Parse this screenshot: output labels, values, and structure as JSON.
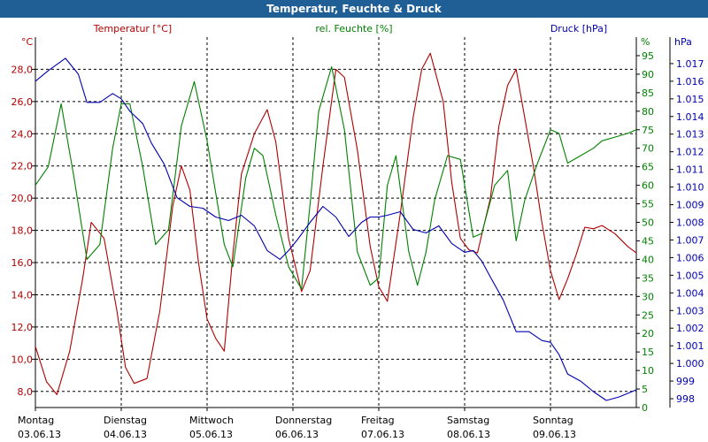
{
  "title": "Temperatur, Feuchte & Druck",
  "colors": {
    "temperature": "#b00000",
    "humidity": "#008000",
    "pressure": "#0000b0",
    "titlebar": "#1f5f95",
    "grid": "#000000"
  },
  "chart_data": {
    "type": "line",
    "title": "Temperatur, Feuchte & Druck",
    "grid": true,
    "x_labels": [
      {
        "day": "Montag",
        "date": "03.06.13"
      },
      {
        "day": "Dienstag",
        "date": "04.06.13"
      },
      {
        "day": "Mittwoch",
        "date": "05.06.13"
      },
      {
        "day": "Donnerstag",
        "date": "06.06.13"
      },
      {
        "day": "Freitag",
        "date": "07.06.13"
      },
      {
        "day": "Samstag",
        "date": "08.06.13"
      },
      {
        "day": "Sonntag",
        "date": "09.06.13"
      }
    ],
    "x_range_days": [
      0,
      7
    ],
    "axes": {
      "temperature": {
        "label": "Temperatur [°C]",
        "unit": "°C",
        "ylim": [
          7.0,
          30.0
        ],
        "ticks": [
          "8,0",
          "10,0",
          "12,0",
          "14,0",
          "16,0",
          "18,0",
          "20,0",
          "22,0",
          "24,0",
          "26,0",
          "28,0"
        ]
      },
      "humidity": {
        "label": "rel. Feuchte [%]",
        "unit": "%",
        "ylim": [
          0,
          100
        ],
        "ticks": [
          "0",
          "5",
          "10",
          "15",
          "20",
          "25",
          "30",
          "35",
          "40",
          "45",
          "50",
          "55",
          "60",
          "65",
          "70",
          "75",
          "80",
          "85",
          "90",
          "95"
        ]
      },
      "pressure": {
        "label": "Druck [hPa]",
        "unit": "hPa",
        "ylim": [
          997.5,
          1018.5
        ],
        "ticks": [
          "998",
          "999",
          "1.000",
          "1.001",
          "1.002",
          "1.003",
          "1.004",
          "1.005",
          "1.006",
          "1.007",
          "1.008",
          "1.009",
          "1.010",
          "1.011",
          "1.012",
          "1.013",
          "1.014",
          "1.015",
          "1.016",
          "1.017"
        ]
      }
    },
    "series": [
      {
        "name": "Temperatur [°C]",
        "axis": "temperature",
        "x": [
          0.0,
          0.13,
          0.25,
          0.4,
          0.55,
          0.65,
          0.8,
          0.95,
          1.05,
          1.15,
          1.3,
          1.45,
          1.6,
          1.7,
          1.8,
          1.9,
          2.0,
          2.1,
          2.2,
          2.3,
          2.4,
          2.55,
          2.7,
          2.8,
          2.95,
          3.1,
          3.2,
          3.35,
          3.5,
          3.6,
          3.75,
          3.9,
          4.0,
          4.1,
          4.25,
          4.4,
          4.5,
          4.6,
          4.75,
          4.85,
          4.95,
          5.05,
          5.15,
          5.3,
          5.4,
          5.5,
          5.6,
          5.7,
          5.8,
          5.9,
          6.0,
          6.1,
          6.2,
          6.3,
          6.4,
          6.5,
          6.6,
          6.75,
          6.9,
          7.0
        ],
        "y": [
          10.8,
          8.6,
          7.8,
          10.5,
          15.0,
          18.5,
          17.5,
          13.0,
          9.5,
          8.5,
          8.8,
          13.0,
          19.5,
          22.0,
          20.5,
          16.0,
          12.5,
          11.3,
          10.5,
          16.5,
          21.5,
          24.0,
          25.5,
          23.5,
          17.5,
          14.2,
          15.5,
          22.0,
          28.0,
          27.5,
          23.0,
          17.0,
          14.5,
          13.6,
          19.0,
          25.0,
          28.0,
          29.0,
          26.0,
          21.0,
          17.5,
          16.8,
          16.6,
          20.0,
          24.5,
          27.0,
          28.0,
          25.0,
          22.0,
          18.5,
          15.5,
          13.7,
          15.0,
          16.5,
          18.2,
          18.1,
          18.3,
          17.8,
          17.0,
          16.6
        ]
      },
      {
        "name": "rel. Feuchte [%]",
        "axis": "humidity",
        "x": [
          0.0,
          0.15,
          0.3,
          0.45,
          0.6,
          0.75,
          0.9,
          1.0,
          1.1,
          1.25,
          1.4,
          1.55,
          1.7,
          1.85,
          2.0,
          2.1,
          2.2,
          2.3,
          2.45,
          2.55,
          2.65,
          2.8,
          2.95,
          3.1,
          3.2,
          3.3,
          3.45,
          3.6,
          3.75,
          3.9,
          4.0,
          4.1,
          4.2,
          4.35,
          4.45,
          4.55,
          4.65,
          4.8,
          4.95,
          5.1,
          5.2,
          5.35,
          5.5,
          5.6,
          5.7,
          5.85,
          6.0,
          6.1,
          6.2,
          6.35,
          6.5,
          6.6,
          6.75,
          6.9,
          7.0
        ],
        "y": [
          60,
          65,
          82,
          62,
          40,
          44,
          70,
          82,
          82,
          65,
          44,
          48,
          76,
          88,
          72,
          58,
          44,
          38,
          62,
          70,
          68,
          52,
          38,
          32,
          55,
          80,
          92,
          75,
          42,
          33,
          35,
          60,
          68,
          42,
          33,
          42,
          56,
          68,
          67,
          46,
          47,
          60,
          64,
          45,
          56,
          66,
          75,
          74,
          66,
          68,
          70,
          72,
          73,
          74,
          75
        ]
      },
      {
        "name": "Druck [hPa]",
        "axis": "pressure",
        "x": [
          0.0,
          0.15,
          0.35,
          0.5,
          0.6,
          0.75,
          0.9,
          1.0,
          1.1,
          1.25,
          1.35,
          1.5,
          1.65,
          1.8,
          1.95,
          2.1,
          2.25,
          2.4,
          2.55,
          2.7,
          2.85,
          2.95,
          3.05,
          3.2,
          3.35,
          3.5,
          3.65,
          3.8,
          3.9,
          4.0,
          4.1,
          4.25,
          4.4,
          4.55,
          4.7,
          4.85,
          5.0,
          5.1,
          5.2,
          5.3,
          5.45,
          5.6,
          5.75,
          5.9,
          6.0,
          6.1,
          6.2,
          6.35,
          6.5,
          6.65,
          6.8,
          6.9,
          7.0
        ],
        "y": [
          1016.0,
          1016.6,
          1017.3,
          1016.4,
          1014.8,
          1014.8,
          1015.3,
          1015.0,
          1014.3,
          1013.6,
          1012.5,
          1011.3,
          1009.4,
          1008.9,
          1008.8,
          1008.3,
          1008.1,
          1008.4,
          1007.8,
          1006.4,
          1005.9,
          1006.4,
          1007.0,
          1008.0,
          1008.9,
          1008.3,
          1007.2,
          1008.0,
          1008.3,
          1008.3,
          1008.4,
          1008.6,
          1007.6,
          1007.4,
          1007.8,
          1006.8,
          1006.3,
          1006.4,
          1005.8,
          1004.9,
          1003.6,
          1001.8,
          1001.8,
          1001.3,
          1001.2,
          1000.5,
          999.4,
          999.0,
          998.4,
          997.9,
          998.1,
          998.3,
          998.5
        ]
      }
    ]
  }
}
